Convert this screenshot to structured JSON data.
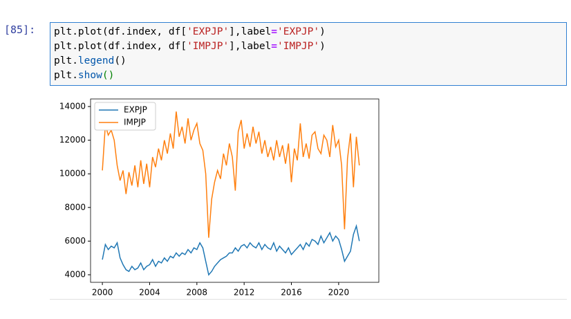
{
  "cell": {
    "prompt": "[85]:",
    "lines": [
      [
        "plt.plot(df.index, df[",
        "'EXPJP'",
        "],label",
        "=",
        "'EXPJP'",
        ")"
      ],
      [
        "plt.plot(df.index, df[",
        "'IMPJP'",
        "],label",
        "=",
        "'IMPJP'",
        ")"
      ],
      [
        "plt.",
        "legend",
        "()"
      ],
      [
        "plt.",
        "show",
        "()"
      ]
    ]
  },
  "chart_data": {
    "type": "line",
    "x": [
      2000,
      2000.25,
      2000.5,
      2000.75,
      2001,
      2001.25,
      2001.5,
      2001.75,
      2002,
      2002.25,
      2002.5,
      2002.75,
      2003,
      2003.25,
      2003.5,
      2003.75,
      2004,
      2004.25,
      2004.5,
      2004.75,
      2005,
      2005.25,
      2005.5,
      2005.75,
      2006,
      2006.25,
      2006.5,
      2006.75,
      2007,
      2007.25,
      2007.5,
      2007.75,
      2008,
      2008.25,
      2008.5,
      2008.75,
      2009,
      2009.25,
      2009.5,
      2009.75,
      2010,
      2010.25,
      2010.5,
      2010.75,
      2011,
      2011.25,
      2011.5,
      2011.75,
      2012,
      2012.25,
      2012.5,
      2012.75,
      2013,
      2013.25,
      2013.5,
      2013.75,
      2014,
      2014.25,
      2014.5,
      2014.75,
      2015,
      2015.25,
      2015.5,
      2015.75,
      2016,
      2016.25,
      2016.5,
      2016.75,
      2017,
      2017.25,
      2017.5,
      2017.75,
      2018,
      2018.25,
      2018.5,
      2018.75,
      2019,
      2019.25,
      2019.5,
      2019.75,
      2020,
      2020.25,
      2020.5,
      2020.75,
      2021,
      2021.25,
      2021.5,
      2021.75
    ],
    "series": [
      {
        "name": "EXPJP",
        "color": "#1f77b4",
        "values": [
          4900,
          5800,
          5500,
          5700,
          5600,
          5900,
          5000,
          4600,
          4300,
          4200,
          4500,
          4300,
          4400,
          4700,
          4300,
          4500,
          4600,
          4900,
          4500,
          4800,
          4700,
          5000,
          4800,
          5100,
          5000,
          5300,
          5100,
          5300,
          5200,
          5500,
          5300,
          5600,
          5500,
          5900,
          5600,
          4800,
          4000,
          4200,
          4500,
          4700,
          4900,
          5000,
          5100,
          5300,
          5300,
          5600,
          5400,
          5700,
          5800,
          5600,
          5900,
          5700,
          5600,
          5900,
          5500,
          5800,
          5600,
          5500,
          5900,
          5400,
          5700,
          5500,
          5300,
          5600,
          5200,
          5400,
          5600,
          5800,
          5500,
          5900,
          5700,
          6100,
          6000,
          5800,
          6300,
          5900,
          6200,
          6500,
          6000,
          6300,
          6100,
          5500,
          4800,
          5100,
          5400,
          6400,
          6900,
          6000
        ]
      },
      {
        "name": "IMPJP",
        "color": "#ff7f0e",
        "values": [
          10200,
          12900,
          12300,
          12600,
          12000,
          10500,
          9600,
          10200,
          8800,
          10100,
          9300,
          10500,
          9200,
          10800,
          9400,
          10600,
          9200,
          11000,
          10400,
          11500,
          10800,
          12000,
          11200,
          12400,
          11500,
          13700,
          12200,
          12800,
          11800,
          13300,
          12000,
          12600,
          13000,
          11800,
          11400,
          10000,
          6200,
          8500,
          9500,
          10200,
          9700,
          11200,
          10500,
          11800,
          11000,
          9000,
          12500,
          13200,
          11500,
          12400,
          11600,
          12800,
          11800,
          12500,
          11200,
          12000,
          11000,
          11600,
          10800,
          12000,
          11000,
          11700,
          10600,
          11800,
          9500,
          11500,
          10800,
          13000,
          11000,
          11800,
          10900,
          12300,
          12500,
          11500,
          11200,
          12300,
          12000,
          11000,
          12900,
          11600,
          12000,
          10500,
          6700,
          10900,
          12400,
          9200,
          12200,
          10500
        ]
      }
    ],
    "xlim": [
      1999.0,
      2023.4
    ],
    "xticks": [
      2000,
      2004,
      2008,
      2012,
      2016,
      2020
    ],
    "ylim": [
      3550,
      14450
    ],
    "yticks": [
      4000,
      6000,
      8000,
      10000,
      12000,
      14000
    ],
    "grid": false,
    "legend": "upper left"
  }
}
